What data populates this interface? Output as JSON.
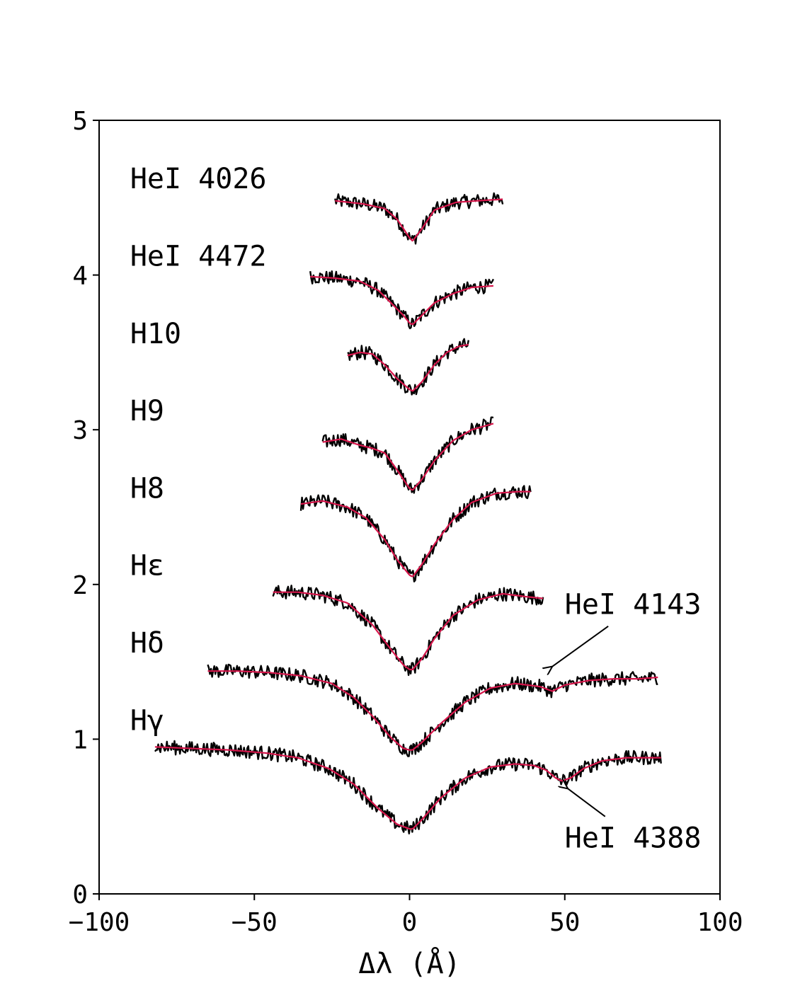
{
  "chart_data": {
    "type": "line",
    "xlabel": "Δλ (Å)",
    "ylabel": "",
    "xlim": [
      -100,
      100
    ],
    "ylim": [
      0,
      5
    ],
    "x_ticks": [
      {
        "value": -100,
        "label": "−100"
      },
      {
        "value": -50,
        "label": "−50"
      },
      {
        "value": 0,
        "label": "0"
      },
      {
        "value": 50,
        "label": "50"
      },
      {
        "value": 100,
        "label": "100"
      }
    ],
    "y_ticks": [
      {
        "value": 0,
        "label": "0"
      },
      {
        "value": 1,
        "label": "1"
      },
      {
        "value": 2,
        "label": "2"
      },
      {
        "value": 3,
        "label": "3"
      },
      {
        "value": 4,
        "label": "4"
      },
      {
        "value": 5,
        "label": "5"
      }
    ],
    "grid": false,
    "colors": {
      "observed": "#000000",
      "model": "#d6164b"
    },
    "series": [
      {
        "label": "HeI 4026",
        "label_x": -90,
        "label_y": 4.56,
        "x": [
          -24,
          -15,
          -8,
          -4,
          0,
          1,
          4,
          8,
          15,
          22,
          30
        ],
        "y": [
          4.48,
          4.46,
          4.43,
          4.36,
          4.24,
          4.22,
          4.3,
          4.42,
          4.47,
          4.48,
          4.49
        ]
      },
      {
        "label": "HeI 4472",
        "label_x": -90,
        "label_y": 4.06,
        "x": [
          -32,
          -24,
          -16,
          -10,
          -5,
          -2,
          0,
          1,
          4,
          8,
          14,
          20,
          27
        ],
        "y": [
          3.99,
          3.98,
          3.96,
          3.9,
          3.8,
          3.74,
          3.69,
          3.68,
          3.74,
          3.82,
          3.88,
          3.92,
          3.93
        ]
      },
      {
        "label": "H10",
        "label_x": -90,
        "label_y": 3.56,
        "x": [
          -20,
          -16,
          -12,
          -8,
          -4,
          0,
          1,
          4,
          8,
          12,
          16,
          19
        ],
        "y": [
          3.48,
          3.5,
          3.49,
          3.42,
          3.33,
          3.26,
          3.25,
          3.31,
          3.42,
          3.5,
          3.54,
          3.55
        ]
      },
      {
        "label": "H9",
        "label_x": -90,
        "label_y": 3.06,
        "x": [
          -28,
          -22,
          -16,
          -12,
          -8,
          -4,
          0,
          1,
          4,
          8,
          14,
          20,
          27
        ],
        "y": [
          2.92,
          2.94,
          2.9,
          2.88,
          2.85,
          2.74,
          2.62,
          2.61,
          2.68,
          2.8,
          2.93,
          3.0,
          3.04
        ]
      },
      {
        "label": "H8",
        "label_x": -90,
        "label_y": 2.56,
        "x": [
          -35,
          -28,
          -20,
          -14,
          -8,
          -4,
          0,
          1,
          4,
          8,
          14,
          20,
          28,
          35,
          39
        ],
        "y": [
          2.52,
          2.54,
          2.5,
          2.43,
          2.29,
          2.16,
          2.06,
          2.05,
          2.13,
          2.26,
          2.42,
          2.53,
          2.59,
          2.6,
          2.6
        ]
      },
      {
        "label": "Hε",
        "label_x": -90,
        "label_y": 2.06,
        "x": [
          -44,
          -36,
          -28,
          -20,
          -12,
          -6,
          -2,
          0,
          1,
          4,
          8,
          14,
          22,
          30,
          38,
          43
        ],
        "y": [
          1.95,
          1.95,
          1.93,
          1.88,
          1.74,
          1.58,
          1.48,
          1.45,
          1.45,
          1.52,
          1.65,
          1.8,
          1.9,
          1.94,
          1.92,
          1.91
        ]
      },
      {
        "label": "Hδ",
        "label_x": -90,
        "label_y": 1.56,
        "x": [
          -65,
          -55,
          -45,
          -35,
          -25,
          -18,
          -12,
          -6,
          -2,
          0,
          1,
          4,
          10,
          18,
          26,
          34,
          42,
          46,
          50,
          58,
          66,
          74,
          80
        ],
        "y": [
          1.44,
          1.44,
          1.43,
          1.41,
          1.36,
          1.27,
          1.15,
          1.01,
          0.94,
          0.93,
          0.93,
          0.98,
          1.1,
          1.24,
          1.33,
          1.36,
          1.34,
          1.31,
          1.35,
          1.38,
          1.39,
          1.39,
          1.4
        ]
      },
      {
        "label": "Hγ",
        "label_x": -90,
        "label_y": 1.06,
        "x": [
          -82,
          -70,
          -58,
          -46,
          -36,
          -26,
          -18,
          -10,
          -4,
          0,
          1,
          4,
          10,
          18,
          26,
          34,
          40,
          44,
          47,
          49,
          52,
          56,
          62,
          70,
          81
        ],
        "y": [
          0.95,
          0.94,
          0.93,
          0.91,
          0.88,
          0.81,
          0.71,
          0.55,
          0.45,
          0.42,
          0.42,
          0.48,
          0.62,
          0.75,
          0.82,
          0.84,
          0.83,
          0.8,
          0.75,
          0.73,
          0.75,
          0.81,
          0.86,
          0.88,
          0.88
        ]
      }
    ],
    "annotations": [
      {
        "text": "HeI 4143",
        "text_x": 50,
        "text_y": 1.81,
        "arrow_from_x": 64,
        "arrow_from_y": 1.73,
        "arrow_to_x": 46,
        "arrow_to_y": 1.47
      },
      {
        "text": "HeI 4388",
        "text_x": 50,
        "text_y": 0.3,
        "arrow_from_x": 63,
        "arrow_from_y": 0.5,
        "arrow_to_x": 51,
        "arrow_to_y": 0.68
      }
    ]
  }
}
